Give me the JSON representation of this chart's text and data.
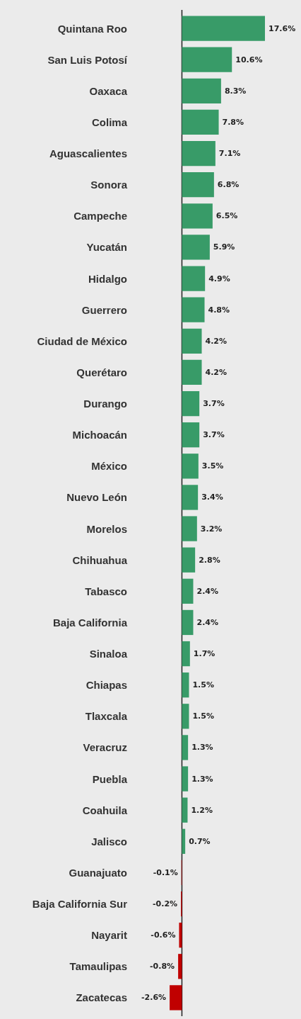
{
  "chart_data": {
    "type": "bar",
    "orientation": "horizontal",
    "categories": [
      "Quintana Roo",
      "San Luis Potosí",
      "Oaxaca",
      "Colima",
      "Aguascalientes",
      "Sonora",
      "Campeche",
      "Yucatán",
      "Hidalgo",
      "Guerrero",
      "Ciudad de México",
      "Querétaro",
      "Durango",
      "Michoacán",
      "México",
      "Nuevo León",
      "Morelos",
      "Chihuahua",
      "Tabasco",
      "Baja California",
      "Sinaloa",
      "Chiapas",
      "Tlaxcala",
      "Veracruz",
      "Puebla",
      "Coahuila",
      "Jalisco",
      "Guanajuato",
      "Baja California Sur",
      "Nayarit",
      "Tamaulipas",
      "Zacatecas"
    ],
    "values": [
      17.6,
      10.6,
      8.3,
      7.8,
      7.1,
      6.8,
      6.5,
      5.9,
      4.9,
      4.8,
      4.2,
      4.2,
      3.7,
      3.7,
      3.5,
      3.4,
      3.2,
      2.8,
      2.4,
      2.4,
      1.7,
      1.5,
      1.5,
      1.3,
      1.3,
      1.2,
      0.7,
      -0.1,
      -0.2,
      -0.6,
      -0.8,
      -2.6
    ],
    "value_labels": [
      "17.6%",
      "10.6%",
      "8.3%",
      "7.8%",
      "7.1%",
      "6.8%",
      "6.5%",
      "5.9%",
      "4.9%",
      "4.8%",
      "4.2%",
      "4.2%",
      "3.7%",
      "3.7%",
      "3.5%",
      "3.4%",
      "3.2%",
      "2.8%",
      "2.4%",
      "2.4%",
      "1.7%",
      "1.5%",
      "1.5%",
      "1.3%",
      "1.3%",
      "1.2%",
      "0.7%",
      "-0.1%",
      "-0.2%",
      "-0.6%",
      "-0.8%",
      "-2.6%"
    ],
    "colors": [
      "#389b68",
      "#389b68",
      "#389b68",
      "#389b68",
      "#389b68",
      "#389b68",
      "#389b68",
      "#389b68",
      "#389b68",
      "#389b68",
      "#389b68",
      "#389b68",
      "#389b68",
      "#389b68",
      "#389b68",
      "#389b68",
      "#389b68",
      "#389b68",
      "#389b68",
      "#389b68",
      "#389b68",
      "#389b68",
      "#389b68",
      "#389b68",
      "#389b68",
      "#389b68",
      "#389b68",
      "#c00000",
      "#c00000",
      "#c00000",
      "#c00000",
      "#c00000"
    ],
    "grid": false
  }
}
